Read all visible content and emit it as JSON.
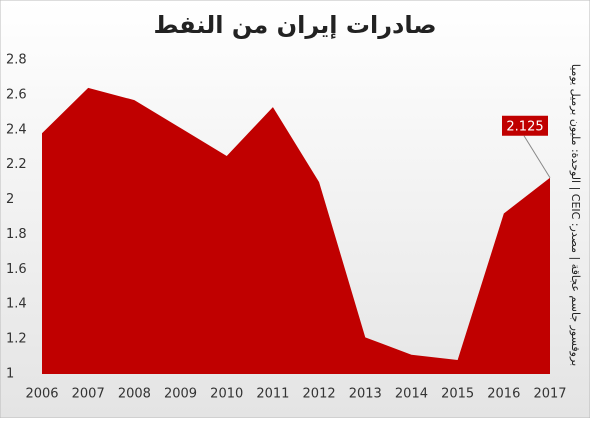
{
  "chart_data": {
    "type": "area",
    "title": "صادرات إيران من النفط",
    "side_note": "بروفسور جاسم عجاقة | مصدر: CEIC | الوحدة: مليون برميل يوميا",
    "categories": [
      "2006",
      "2007",
      "2008",
      "2009",
      "2010",
      "2011",
      "2012",
      "2013",
      "2014",
      "2015",
      "2016",
      "2017"
    ],
    "series": [
      {
        "color": "#c00000",
        "values": [
          2.38,
          2.64,
          2.57,
          2.41,
          2.25,
          2.53,
          2.1,
          1.21,
          1.11,
          1.08,
          1.92,
          2.125
        ]
      }
    ],
    "ylim": [
      1,
      2.8
    ],
    "yticks": [
      1,
      1.2,
      1.4,
      1.6,
      1.8,
      2,
      2.2,
      2.4,
      2.6,
      2.8
    ],
    "grid": false,
    "labeled_point": 11
  }
}
